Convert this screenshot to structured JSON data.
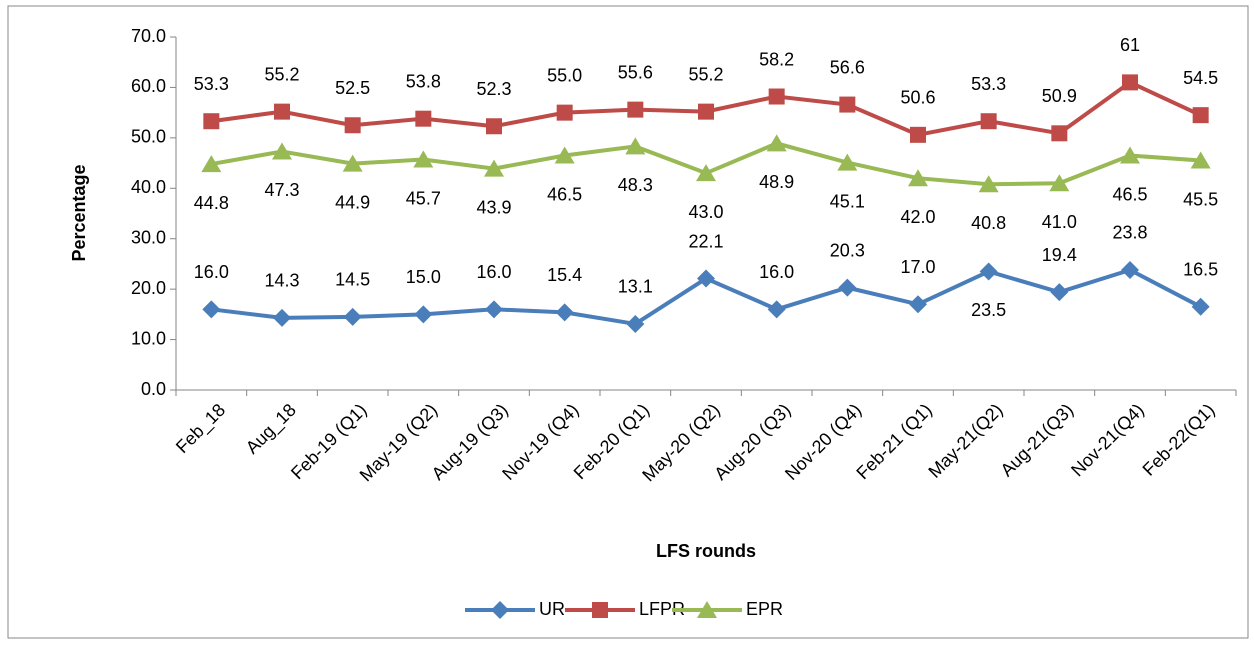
{
  "chart_data": {
    "type": "line",
    "y_label": "Percentage",
    "x_label": "LFS rounds",
    "categories": [
      "Feb_18",
      "Aug_18",
      "Feb-19 (Q1)",
      "May-19 (Q2)",
      "Aug-19 (Q3)",
      "Nov-19 (Q4)",
      "Feb-20 (Q1)",
      "May-20 (Q2)",
      "Aug-20 (Q3)",
      "Nov-20 (Q4)",
      "Feb-21 (Q1)",
      "May-21(Q2)",
      "Aug-21(Q3)",
      "Nov-21(Q4)",
      "Feb-22(Q1)"
    ],
    "series": [
      {
        "name": "UR",
        "color": "#4a7ebb",
        "marker": "diamond",
        "values": [
          16.0,
          14.3,
          14.5,
          15.0,
          16.0,
          15.4,
          13.1,
          22.1,
          16.0,
          20.3,
          17.0,
          23.5,
          19.4,
          23.8,
          16.5
        ],
        "value_labels": [
          "16.0",
          "14.3",
          "14.5",
          "15.0",
          "16.0",
          "15.4",
          "13.1",
          "22.1",
          "16.0",
          "20.3",
          "17.0",
          "23.5",
          "19.4",
          "23.8",
          "16.5"
        ]
      },
      {
        "name": "LFPR",
        "color": "#be4b48",
        "marker": "square",
        "values": [
          53.3,
          55.2,
          52.5,
          53.8,
          52.3,
          55.0,
          55.6,
          55.2,
          58.2,
          56.6,
          50.6,
          53.3,
          50.9,
          61,
          54.5
        ],
        "value_labels": [
          "53.3",
          "55.2",
          "52.5",
          "53.8",
          "52.3",
          "55.0",
          "55.6",
          "55.2",
          "58.2",
          "56.6",
          "50.6",
          "53.3",
          "50.9",
          "61",
          "54.5"
        ]
      },
      {
        "name": "EPR",
        "color": "#98b954",
        "marker": "triangle",
        "values": [
          44.8,
          47.3,
          44.9,
          45.7,
          43.9,
          46.5,
          48.3,
          43.0,
          48.9,
          45.1,
          42.0,
          40.8,
          41.0,
          46.5,
          45.5
        ],
        "value_labels": [
          "44.8",
          "47.3",
          "44.9",
          "45.7",
          "43.9",
          "46.5",
          "48.3",
          "43.0",
          "48.9",
          "45.1",
          "42.0",
          "40.8",
          "41.0",
          "46.5",
          "45.5"
        ]
      }
    ],
    "ylim": [
      0,
      70
    ],
    "yticks": [
      {
        "value": 0,
        "label": "0.0"
      },
      {
        "value": 10,
        "label": "10.0"
      },
      {
        "value": 20,
        "label": "20.0"
      },
      {
        "value": 30,
        "label": "30.0"
      },
      {
        "value": 40,
        "label": "40.0"
      },
      {
        "value": 50,
        "label": "50.0"
      },
      {
        "value": 60,
        "label": "60.0"
      },
      {
        "value": 70,
        "label": "70.0"
      }
    ],
    "grid": false,
    "legend": "bottom"
  }
}
